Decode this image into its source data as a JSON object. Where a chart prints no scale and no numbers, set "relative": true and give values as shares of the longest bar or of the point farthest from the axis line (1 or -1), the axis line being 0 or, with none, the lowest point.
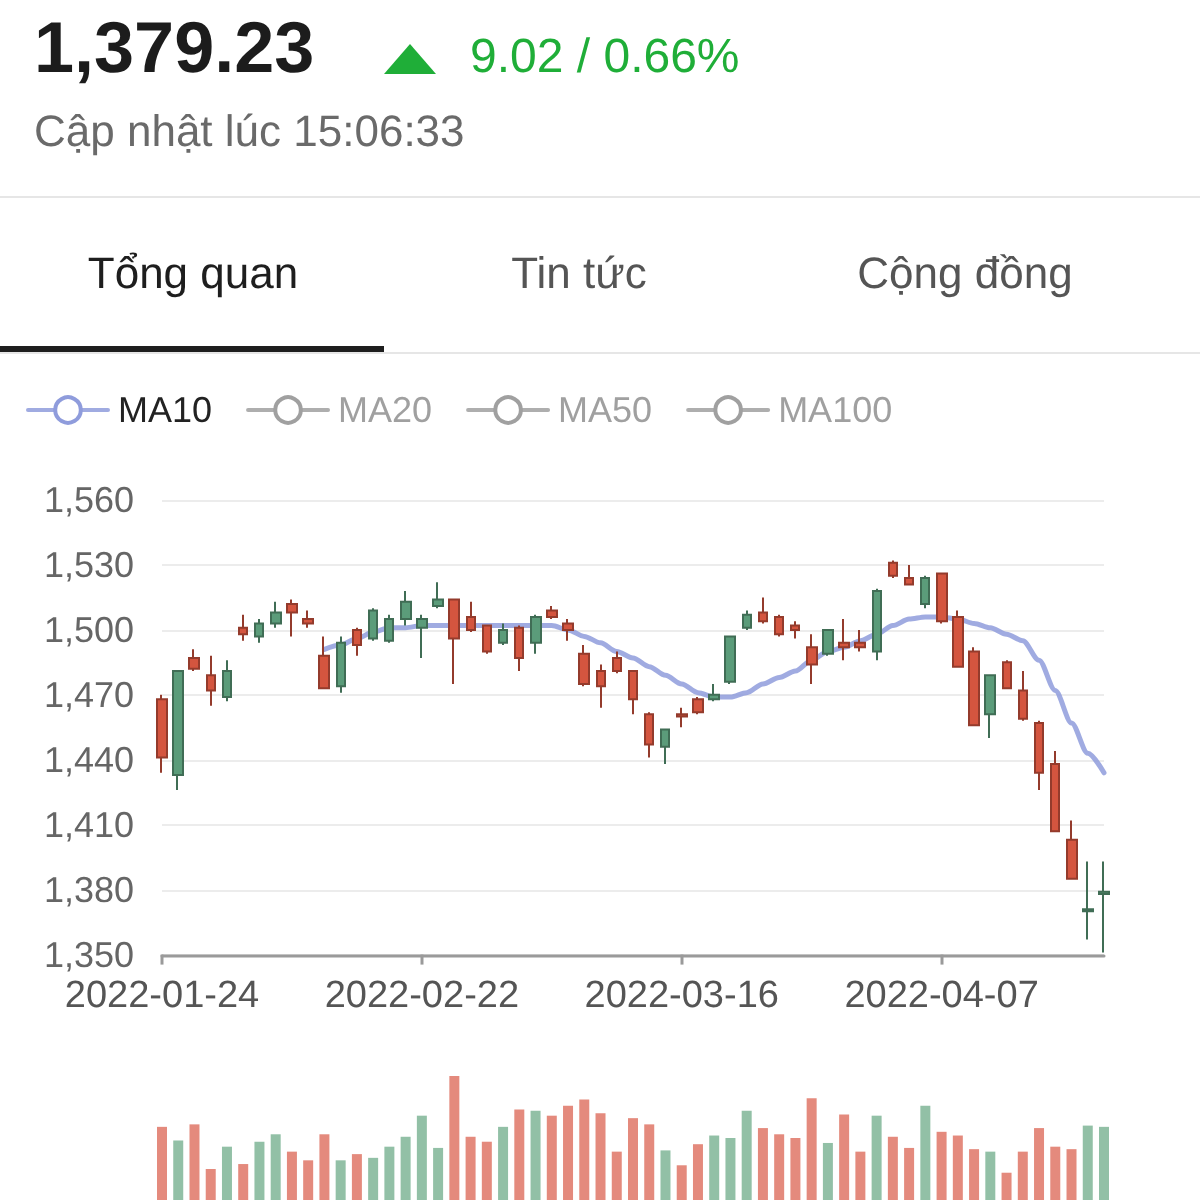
{
  "chart_data": [
    {
      "type": "candlestick",
      "title": "1,379.23",
      "subtitle": "Cập nhật lúc 15:06:33",
      "annotations": [
        "9.02 / 0.66%",
        "Tổng quan",
        "Tin tức",
        "Cộng đồng"
      ],
      "categories": [
        "2022-01-24",
        null,
        null,
        null,
        null,
        null,
        null,
        null,
        null,
        null,
        null,
        null,
        null,
        null,
        null,
        null,
        "2022-02-22",
        null,
        null,
        null,
        null,
        null,
        null,
        null,
        null,
        null,
        null,
        null,
        null,
        null,
        null,
        null,
        "2022-03-16",
        null,
        null,
        null,
        null,
        null,
        null,
        null,
        null,
        null,
        null,
        null,
        null,
        null,
        null,
        null,
        "2022-04-07",
        null,
        null,
        null,
        null,
        null,
        null,
        null,
        null,
        null,
        null
      ],
      "ohlc": [
        [
          1468,
          1470,
          1434,
          1441
        ],
        [
          1433,
          1481,
          1426,
          1481
        ],
        [
          1487,
          1491,
          1481,
          1482
        ],
        [
          1479,
          1488,
          1465,
          1472
        ],
        [
          1469,
          1486,
          1467,
          1481
        ],
        [
          1501,
          1507,
          1495,
          1498
        ],
        [
          1497,
          1505,
          1494,
          1503
        ],
        [
          1503,
          1513,
          1501,
          1508
        ],
        [
          1512,
          1514,
          1497,
          1508
        ],
        [
          1505,
          1509,
          1501,
          1503
        ],
        [
          1488,
          1497,
          1473,
          1473
        ],
        [
          1474,
          1497,
          1471,
          1494
        ],
        [
          1500,
          1501,
          1488,
          1493
        ],
        [
          1496,
          1510,
          1495,
          1509
        ],
        [
          1495,
          1507,
          1494,
          1505
        ],
        [
          1505,
          1518,
          1502,
          1513
        ],
        [
          1501,
          1507,
          1487,
          1505
        ],
        [
          1511,
          1522,
          1510,
          1514
        ],
        [
          1514,
          1514,
          1475,
          1496
        ],
        [
          1506,
          1513,
          1499,
          1500
        ],
        [
          1502,
          1502,
          1489,
          1490
        ],
        [
          1494,
          1503,
          1493,
          1500
        ],
        [
          1501,
          1502,
          1481,
          1487
        ],
        [
          1494,
          1507,
          1489,
          1506
        ],
        [
          1509,
          1511,
          1505,
          1506
        ],
        [
          1503,
          1505,
          1495,
          1500
        ],
        [
          1489,
          1493,
          1474,
          1475
        ],
        [
          1481,
          1484,
          1464,
          1474
        ],
        [
          1487,
          1490,
          1480,
          1481
        ],
        [
          1481,
          1481,
          1461,
          1468
        ],
        [
          1461,
          1462,
          1441,
          1447
        ],
        [
          1446,
          1454,
          1438,
          1454
        ],
        [
          1461,
          1464,
          1455,
          1460
        ],
        [
          1468,
          1469,
          1461,
          1462
        ],
        [
          1468,
          1475,
          1467,
          1470
        ],
        [
          1476,
          1497,
          1475,
          1497
        ],
        [
          1501,
          1509,
          1500,
          1507
        ],
        [
          1508,
          1515,
          1503,
          1504
        ],
        [
          1506,
          1507,
          1497,
          1498
        ],
        [
          1502,
          1504,
          1496,
          1500
        ],
        [
          1492,
          1498,
          1475,
          1484
        ],
        [
          1489,
          1500,
          1488,
          1500
        ],
        [
          1494,
          1505,
          1486,
          1492
        ],
        [
          1494,
          1500,
          1490,
          1492
        ],
        [
          1490,
          1519,
          1486,
          1518
        ],
        [
          1531,
          1532,
          1524,
          1525
        ],
        [
          1524,
          1530,
          1521,
          1521
        ],
        [
          1512,
          1525,
          1510,
          1524
        ],
        [
          1526,
          1526,
          1503,
          1504
        ],
        [
          1506,
          1509,
          1483,
          1483
        ],
        [
          1490,
          1492,
          1456,
          1456
        ],
        [
          1461,
          1479,
          1450,
          1479
        ],
        [
          1485,
          1486,
          1473,
          1473
        ],
        [
          1472,
          1481,
          1458,
          1459
        ],
        [
          1457,
          1458,
          1426,
          1434
        ],
        [
          1438,
          1444,
          1407,
          1407
        ],
        [
          1403,
          1412,
          1385,
          1385
        ],
        [
          1370,
          1393,
          1357,
          1371
        ],
        [
          1378,
          1393,
          1351,
          1379
        ]
      ],
      "colors": [
        "#d4553f",
        "#5b9c7a",
        "#d4553f",
        "#d4553f",
        "#5b9c7a",
        "#d4553f",
        "#5b9c7a",
        "#5b9c7a",
        "#d4553f",
        "#d4553f",
        "#d4553f",
        "#5b9c7a",
        "#d4553f",
        "#5b9c7a",
        "#5b9c7a",
        "#5b9c7a",
        "#5b9c7a",
        "#5b9c7a",
        "#d4553f",
        "#d4553f",
        "#d4553f",
        "#5b9c7a",
        "#d4553f",
        "#5b9c7a",
        "#d4553f",
        "#d4553f",
        "#d4553f",
        "#d4553f",
        "#d4553f",
        "#d4553f",
        "#d4553f",
        "#5b9c7a",
        "#d4553f",
        "#d4553f",
        "#5b9c7a",
        "#5b9c7a",
        "#5b9c7a",
        "#d4553f",
        "#d4553f",
        "#d4553f",
        "#d4553f",
        "#5b9c7a",
        "#d4553f",
        "#d4553f",
        "#5b9c7a",
        "#d4553f",
        "#d4553f",
        "#5b9c7a",
        "#d4553f",
        "#d4553f",
        "#d4553f",
        "#5b9c7a",
        "#d4553f",
        "#d4553f",
        "#d4553f",
        "#d4553f",
        "#d4553f",
        "#5b9c7a",
        "#5b9c7a"
      ],
      "series": [
        {
          "name": "MA10",
          "type": "line",
          "color": "#8f9cdc",
          "values": [
            null,
            null,
            null,
            null,
            null,
            null,
            null,
            null,
            null,
            null,
            1491,
            1493,
            1496,
            1499,
            1501,
            1501,
            1502,
            1502,
            1502,
            1502,
            1502,
            1502,
            1502,
            1502,
            1502,
            1500,
            1497,
            1494,
            1490,
            1487,
            1483,
            1479,
            1475,
            1471,
            1469,
            1469,
            1471,
            1475,
            1478,
            1481,
            1486,
            1490,
            1492,
            1495,
            1498,
            1502,
            1505,
            1506,
            1506,
            1505,
            1503,
            1501,
            1498,
            1495,
            1486,
            1472,
            1457,
            1443,
            1434
          ]
        },
        {
          "name": "MA20",
          "type": "line",
          "color": "#a0a0a0",
          "values": [
            null,
            null,
            null,
            null,
            null,
            null,
            null,
            null,
            null,
            null,
            null,
            null,
            null,
            null,
            null,
            null,
            null,
            null,
            null,
            null,
            null,
            null,
            null,
            null,
            null,
            null,
            null,
            null,
            null,
            null,
            null,
            null,
            null,
            null,
            null,
            null,
            null,
            null,
            null,
            null,
            null,
            null,
            null,
            null,
            null,
            null,
            null,
            null,
            null,
            null,
            null,
            null,
            null,
            null,
            null,
            null,
            null,
            null,
            null
          ]
        },
        {
          "name": "MA50",
          "type": "line",
          "color": "#a0a0a0",
          "values": [
            null,
            null,
            null,
            null,
            null,
            null,
            null,
            null,
            null,
            null,
            null,
            null,
            null,
            null,
            null,
            null,
            null,
            null,
            null,
            null,
            null,
            null,
            null,
            null,
            null,
            null,
            null,
            null,
            null,
            null,
            null,
            null,
            null,
            null,
            null,
            null,
            null,
            null,
            null,
            null,
            null,
            null,
            null,
            null,
            null,
            null,
            null,
            null,
            null,
            null,
            null,
            null,
            null,
            null,
            null,
            null,
            null,
            null,
            null
          ]
        },
        {
          "name": "MA100",
          "type": "line",
          "color": "#a0a0a0",
          "values": [
            null,
            null,
            null,
            null,
            null,
            null,
            null,
            null,
            null,
            null,
            null,
            null,
            null,
            null,
            null,
            null,
            null,
            null,
            null,
            null,
            null,
            null,
            null,
            null,
            null,
            null,
            null,
            null,
            null,
            null,
            null,
            null,
            null,
            null,
            null,
            null,
            null,
            null,
            null,
            null,
            null,
            null,
            null,
            null,
            null,
            null,
            null,
            null,
            null,
            null,
            null,
            null,
            null,
            null,
            null,
            null,
            null,
            null,
            null
          ]
        }
      ],
      "ylim": [
        1350,
        1560
      ],
      "yticks": [
        {
          "value": 1350,
          "label": "1,350"
        },
        {
          "value": 1380,
          "label": "1,380"
        },
        {
          "value": 1410,
          "label": "1,410"
        },
        {
          "value": 1440,
          "label": "1,440"
        },
        {
          "value": 1470,
          "label": "1,470"
        },
        {
          "value": 1500,
          "label": "1,500"
        },
        {
          "value": 1530,
          "label": "1,530"
        },
        {
          "value": 1560,
          "label": "1,560"
        }
      ],
      "grid": "y",
      "legend": "top left",
      "marker": "none",
      "line_style": "solid"
    },
    {
      "type": "bar",
      "relative": true,
      "categories": [
        null,
        null,
        null,
        null,
        null,
        null,
        null,
        null,
        null,
        null,
        null,
        null,
        null,
        null,
        null,
        null,
        null,
        null,
        null,
        null,
        null,
        null,
        null,
        null,
        null,
        null,
        null,
        null,
        null,
        null,
        null,
        null,
        null,
        null,
        null,
        null,
        null,
        null,
        null,
        null,
        null,
        null,
        null,
        null,
        null,
        null,
        null,
        null,
        null,
        null,
        null,
        null,
        null,
        null,
        null,
        null,
        null,
        null,
        null
      ],
      "values": [
        0.59,
        0.48,
        0.61,
        0.25,
        0.43,
        0.29,
        0.47,
        0.53,
        0.39,
        0.32,
        0.53,
        0.32,
        0.37,
        0.34,
        0.43,
        0.51,
        0.68,
        0.42,
        1,
        0.51,
        0.47,
        0.59,
        0.73,
        0.72,
        0.68,
        0.76,
        0.81,
        0.7,
        0.39,
        0.66,
        0.61,
        0.4,
        0.28,
        0.45,
        0.52,
        0.5,
        0.72,
        0.58,
        0.53,
        0.5,
        0.82,
        0.46,
        0.69,
        0.39,
        0.68,
        0.51,
        0.42,
        0.76,
        0.55,
        0.52,
        0.41,
        0.39,
        0.22,
        0.39,
        0.58,
        0.43,
        0.41,
        0.6,
        0.59
      ],
      "colors": [
        "#e48a7d",
        "#92c0a6",
        "#e48a7d",
        "#e48a7d",
        "#92c0a6",
        "#e48a7d",
        "#92c0a6",
        "#92c0a6",
        "#e48a7d",
        "#e48a7d",
        "#e48a7d",
        "#92c0a6",
        "#e48a7d",
        "#92c0a6",
        "#92c0a6",
        "#92c0a6",
        "#92c0a6",
        "#92c0a6",
        "#e48a7d",
        "#e48a7d",
        "#e48a7d",
        "#92c0a6",
        "#e48a7d",
        "#92c0a6",
        "#e48a7d",
        "#e48a7d",
        "#e48a7d",
        "#e48a7d",
        "#e48a7d",
        "#e48a7d",
        "#e48a7d",
        "#92c0a6",
        "#e48a7d",
        "#e48a7d",
        "#92c0a6",
        "#92c0a6",
        "#92c0a6",
        "#e48a7d",
        "#e48a7d",
        "#e48a7d",
        "#e48a7d",
        "#92c0a6",
        "#e48a7d",
        "#e48a7d",
        "#92c0a6",
        "#e48a7d",
        "#e48a7d",
        "#92c0a6",
        "#e48a7d",
        "#e48a7d",
        "#e48a7d",
        "#92c0a6",
        "#e48a7d",
        "#e48a7d",
        "#e48a7d",
        "#e48a7d",
        "#e48a7d",
        "#92c0a6",
        "#92c0a6"
      ]
    }
  ]
}
